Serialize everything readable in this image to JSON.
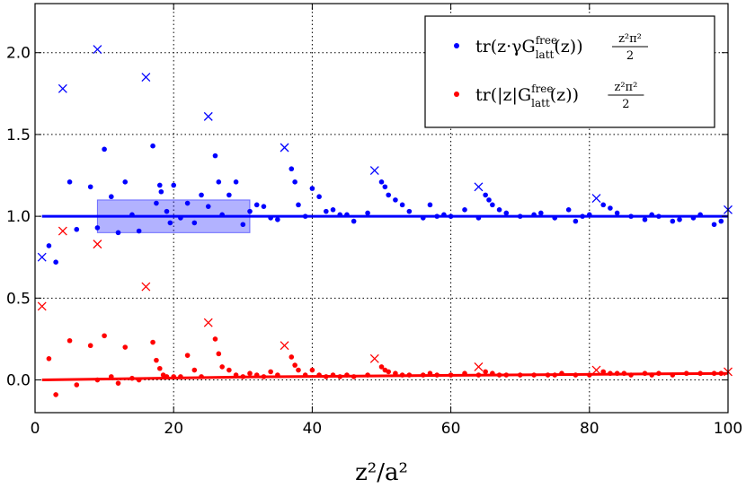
{
  "chart_data": {
    "type": "scatter",
    "title": "",
    "xlabel": "z²/a²",
    "ylabel": "",
    "xlim": [
      0,
      100
    ],
    "ylim": [
      -0.2,
      2.3
    ],
    "grid": true,
    "grid_style": "dotted",
    "x_ticks": [
      0,
      20,
      40,
      60,
      80,
      100
    ],
    "x_tick_labels": [
      "0",
      "20",
      "40",
      "60",
      "80",
      "100"
    ],
    "y_ticks": [
      0.0,
      0.5,
      1.0,
      1.5,
      2.0
    ],
    "y_tick_labels": [
      "0.0",
      "0.5",
      "1.0",
      "1.5",
      "2.0"
    ],
    "legend_position": "top-right",
    "series": [
      {
        "name": "tr(z·γ G_latt^free(z)) z²π²/2",
        "legend_main": "tr(z·γG",
        "legend_sup": "free",
        "legend_sub": "latt",
        "legend_tail": "(z))",
        "legend_frac_num": "z²π²",
        "legend_frac_den": "2",
        "color": "#0000ff",
        "marker": "dot",
        "points": [
          [
            2,
            0.82
          ],
          [
            3,
            0.72
          ],
          [
            5,
            1.21
          ],
          [
            6,
            0.92
          ],
          [
            8,
            1.18
          ],
          [
            9,
            0.93
          ],
          [
            10,
            1.41
          ],
          [
            11,
            1.12
          ],
          [
            12,
            0.9
          ],
          [
            13,
            1.21
          ],
          [
            14,
            1.01
          ],
          [
            15,
            0.91
          ],
          [
            17,
            1.43
          ],
          [
            17.5,
            1.08
          ],
          [
            18,
            1.19
          ],
          [
            18.2,
            1.15
          ],
          [
            19,
            1.03
          ],
          [
            19.5,
            0.96
          ],
          [
            20,
            1.19
          ],
          [
            21,
            0.99
          ],
          [
            22,
            1.08
          ],
          [
            23,
            0.96
          ],
          [
            24,
            1.13
          ],
          [
            25,
            1.06
          ],
          [
            26,
            1.37
          ],
          [
            26.5,
            1.21
          ],
          [
            27,
            1.01
          ],
          [
            28,
            1.13
          ],
          [
            29,
            1.21
          ],
          [
            30,
            0.95
          ],
          [
            31,
            1.03
          ],
          [
            32,
            1.07
          ],
          [
            33,
            1.06
          ],
          [
            34,
            0.99
          ],
          [
            35,
            0.98
          ],
          [
            37,
            1.29
          ],
          [
            37.5,
            1.21
          ],
          [
            38,
            1.07
          ],
          [
            39,
            1.0
          ],
          [
            40,
            1.17
          ],
          [
            41,
            1.12
          ],
          [
            42,
            1.03
          ],
          [
            43,
            1.04
          ],
          [
            44,
            1.01
          ],
          [
            45,
            1.01
          ],
          [
            46,
            0.97
          ],
          [
            48,
            1.02
          ],
          [
            50,
            1.21
          ],
          [
            50.5,
            1.18
          ],
          [
            51,
            1.13
          ],
          [
            52,
            1.1
          ],
          [
            53,
            1.07
          ],
          [
            54,
            1.03
          ],
          [
            56,
            0.99
          ],
          [
            57,
            1.07
          ],
          [
            58,
            1.0
          ],
          [
            59,
            1.01
          ],
          [
            60,
            1.0
          ],
          [
            62,
            1.04
          ],
          [
            64,
            0.99
          ],
          [
            65,
            1.13
          ],
          [
            65.5,
            1.1
          ],
          [
            66,
            1.07
          ],
          [
            67,
            1.04
          ],
          [
            68,
            1.02
          ],
          [
            70,
            1.0
          ],
          [
            72,
            1.01
          ],
          [
            73,
            1.02
          ],
          [
            75,
            0.99
          ],
          [
            77,
            1.04
          ],
          [
            78,
            0.97
          ],
          [
            79,
            1.0
          ],
          [
            80,
            1.01
          ],
          [
            82,
            1.07
          ],
          [
            83,
            1.05
          ],
          [
            84,
            1.02
          ],
          [
            86,
            1.0
          ],
          [
            88,
            0.98
          ],
          [
            89,
            1.01
          ],
          [
            90,
            1.0
          ],
          [
            92,
            0.97
          ],
          [
            93,
            0.98
          ],
          [
            95,
            0.99
          ],
          [
            96,
            1.01
          ],
          [
            98,
            0.95
          ],
          [
            99,
            0.97
          ]
        ],
        "exact_points": [
          [
            1,
            0.75
          ],
          [
            4,
            1.78
          ],
          [
            9,
            2.02
          ],
          [
            16,
            1.85
          ],
          [
            25,
            1.61
          ],
          [
            36,
            1.42
          ],
          [
            49,
            1.28
          ],
          [
            64,
            1.18
          ],
          [
            81,
            1.11
          ],
          [
            100,
            1.04
          ]
        ],
        "fit_line": [
          [
            1,
            1.0
          ],
          [
            100,
            1.0
          ]
        ],
        "band": {
          "x": [
            9,
            31
          ],
          "y": [
            0.9,
            1.1
          ]
        }
      },
      {
        "name": "tr(|z| G_latt^free(z)) z²π²/2",
        "legend_main": "tr(|z|G",
        "legend_sup": "free",
        "legend_sub": "latt",
        "legend_tail": "(z))",
        "legend_frac_num": "z²π²",
        "legend_frac_den": "2",
        "color": "#ff0000",
        "marker": "dot",
        "points": [
          [
            2,
            0.13
          ],
          [
            3,
            -0.09
          ],
          [
            5,
            0.24
          ],
          [
            6,
            -0.03
          ],
          [
            8,
            0.21
          ],
          [
            9,
            0.0
          ],
          [
            10,
            0.27
          ],
          [
            11,
            0.02
          ],
          [
            12,
            -0.02
          ],
          [
            13,
            0.2
          ],
          [
            14,
            0.01
          ],
          [
            15,
            0.0
          ],
          [
            17,
            0.23
          ],
          [
            17.5,
            0.12
          ],
          [
            18,
            0.07
          ],
          [
            18.5,
            0.03
          ],
          [
            19,
            0.02
          ],
          [
            20,
            0.02
          ],
          [
            21,
            0.02
          ],
          [
            22,
            0.15
          ],
          [
            23,
            0.06
          ],
          [
            24,
            0.02
          ],
          [
            26,
            0.25
          ],
          [
            26.5,
            0.16
          ],
          [
            27,
            0.08
          ],
          [
            28,
            0.06
          ],
          [
            29,
            0.03
          ],
          [
            30,
            0.02
          ],
          [
            31,
            0.04
          ],
          [
            32,
            0.03
          ],
          [
            33,
            0.02
          ],
          [
            34,
            0.05
          ],
          [
            35,
            0.03
          ],
          [
            37,
            0.14
          ],
          [
            37.5,
            0.09
          ],
          [
            38,
            0.06
          ],
          [
            39,
            0.03
          ],
          [
            40,
            0.06
          ],
          [
            41,
            0.03
          ],
          [
            42,
            0.02
          ],
          [
            43,
            0.03
          ],
          [
            44,
            0.02
          ],
          [
            45,
            0.03
          ],
          [
            46,
            0.02
          ],
          [
            48,
            0.03
          ],
          [
            50,
            0.08
          ],
          [
            50.5,
            0.06
          ],
          [
            51,
            0.05
          ],
          [
            52,
            0.04
          ],
          [
            53,
            0.03
          ],
          [
            54,
            0.03
          ],
          [
            56,
            0.03
          ],
          [
            57,
            0.04
          ],
          [
            58,
            0.03
          ],
          [
            60,
            0.03
          ],
          [
            62,
            0.04
          ],
          [
            64,
            0.03
          ],
          [
            65,
            0.05
          ],
          [
            66,
            0.04
          ],
          [
            67,
            0.03
          ],
          [
            68,
            0.03
          ],
          [
            70,
            0.03
          ],
          [
            72,
            0.03
          ],
          [
            74,
            0.03
          ],
          [
            75,
            0.03
          ],
          [
            76,
            0.04
          ],
          [
            78,
            0.03
          ],
          [
            80,
            0.03
          ],
          [
            82,
            0.05
          ],
          [
            83,
            0.04
          ],
          [
            84,
            0.04
          ],
          [
            85,
            0.04
          ],
          [
            86,
            0.03
          ],
          [
            88,
            0.04
          ],
          [
            89,
            0.03
          ],
          [
            90,
            0.04
          ],
          [
            92,
            0.03
          ],
          [
            94,
            0.04
          ],
          [
            96,
            0.04
          ],
          [
            98,
            0.04
          ],
          [
            99,
            0.04
          ]
        ],
        "exact_points": [
          [
            1,
            0.45
          ],
          [
            4,
            0.91
          ],
          [
            9,
            0.83
          ],
          [
            16,
            0.57
          ],
          [
            25,
            0.35
          ],
          [
            36,
            0.21
          ],
          [
            49,
            0.13
          ],
          [
            64,
            0.08
          ],
          [
            81,
            0.06
          ],
          [
            100,
            0.05
          ]
        ],
        "fit_line": [
          [
            1,
            0.0
          ],
          [
            30,
            0.018
          ],
          [
            60,
            0.028
          ],
          [
            100,
            0.04
          ]
        ]
      }
    ]
  }
}
